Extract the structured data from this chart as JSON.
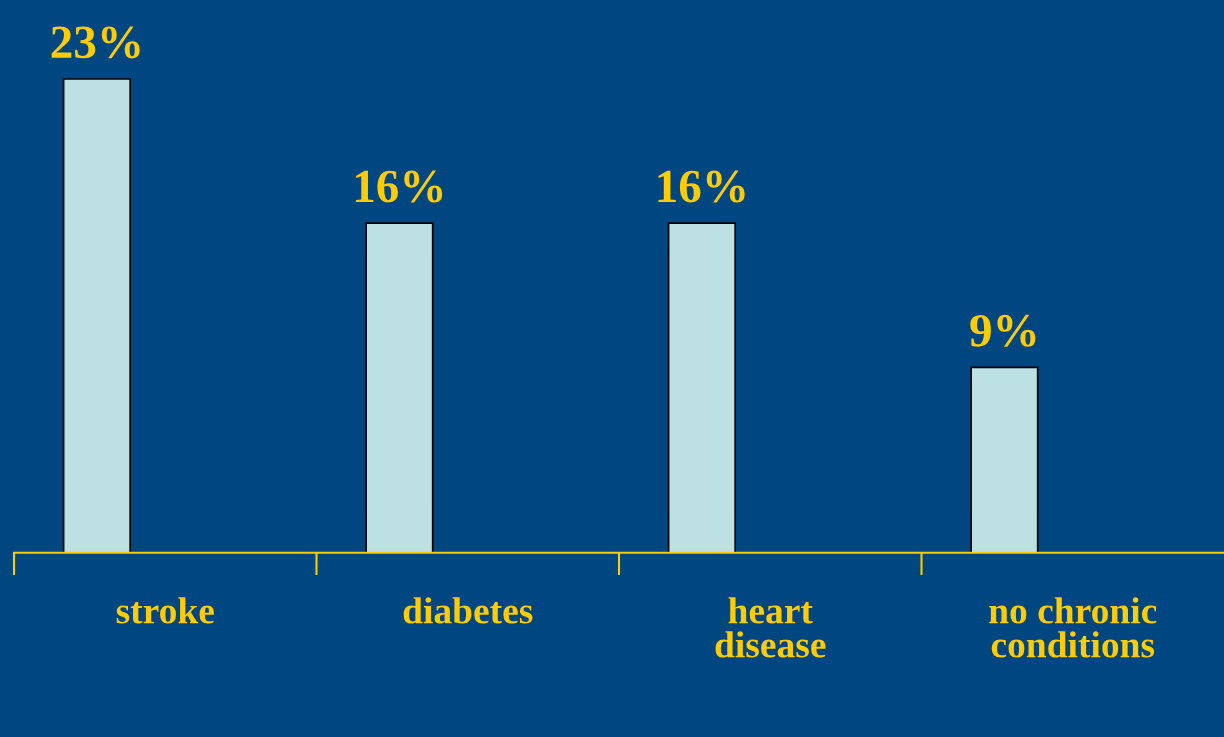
{
  "chart_data": {
    "type": "bar",
    "categories": [
      "stroke",
      "diabetes",
      "heart\ndisease",
      "no chronic\nconditions"
    ],
    "values": [
      23,
      16,
      16,
      9
    ],
    "color": "#bde0e3",
    "data_labels": true,
    "value_labels": [
      "23%",
      "16%",
      "16%",
      "9%"
    ],
    "grid": false,
    "legend": false
  }
}
